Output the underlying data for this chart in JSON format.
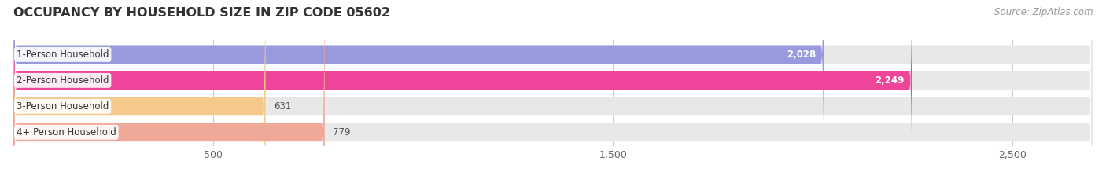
{
  "title": "OCCUPANCY BY HOUSEHOLD SIZE IN ZIP CODE 05602",
  "source": "Source: ZipAtlas.com",
  "categories": [
    "1-Person Household",
    "2-Person Household",
    "3-Person Household",
    "4+ Person Household"
  ],
  "values": [
    2028,
    2249,
    631,
    779
  ],
  "bar_colors": [
    "#9999dd",
    "#ee4499",
    "#f5c98a",
    "#f0a898"
  ],
  "label_colors": [
    "#ffffff",
    "#ffffff",
    "#777777",
    "#777777"
  ],
  "xlim_max": 2700,
  "xticks": [
    500,
    1500,
    2500
  ],
  "xtick_labels": [
    "500",
    "1,500",
    "2,500"
  ],
  "background_color": "#ffffff",
  "bar_bg_color": "#e8e8e8",
  "title_fontsize": 11.5,
  "label_fontsize": 8.5,
  "tick_fontsize": 9,
  "source_fontsize": 8.5,
  "value_fontsize": 8.5
}
